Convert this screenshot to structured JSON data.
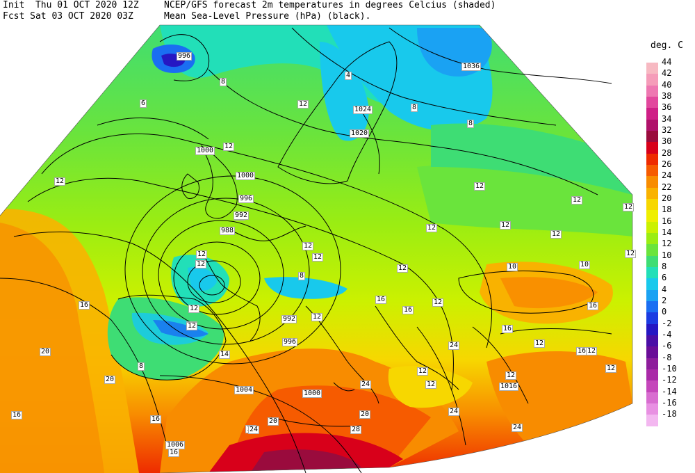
{
  "header": {
    "line1_left": "Init  Thu 01 OCT 2020 12Z",
    "line2_left": "Fcst Sat 03 OCT 2020 03Z",
    "line1_right": "NCEP/GFS forecast 2m temperatures in degrees Celcius (shaded)",
    "line2_right": "Mean Sea-Level Pressure (hPa) (black)."
  },
  "colorbar": {
    "unit": "deg. C",
    "entries": [
      {
        "label": "44",
        "color": "#f7b9c2"
      },
      {
        "label": "42",
        "color": "#f59cb9"
      },
      {
        "label": "40",
        "color": "#ee77b1"
      },
      {
        "label": "38",
        "color": "#e2479d"
      },
      {
        "label": "36",
        "color": "#cf1f86"
      },
      {
        "label": "34",
        "color": "#b0116a"
      },
      {
        "label": "32",
        "color": "#9a0b3d"
      },
      {
        "label": "30",
        "color": "#d8001a"
      },
      {
        "label": "28",
        "color": "#ee2b00"
      },
      {
        "label": "26",
        "color": "#f65b00"
      },
      {
        "label": "24",
        "color": "#f88c00"
      },
      {
        "label": "22",
        "color": "#f9b200"
      },
      {
        "label": "20",
        "color": "#f7d700"
      },
      {
        "label": "18",
        "color": "#efef00"
      },
      {
        "label": "16",
        "color": "#cbf100"
      },
      {
        "label": "14",
        "color": "#9bed12"
      },
      {
        "label": "12",
        "color": "#6ae43c"
      },
      {
        "label": "10",
        "color": "#3edd74"
      },
      {
        "label": "8",
        "color": "#22dfb8"
      },
      {
        "label": "6",
        "color": "#18c9ec"
      },
      {
        "label": "4",
        "color": "#1aa2f3"
      },
      {
        "label": "2",
        "color": "#1a6ef2"
      },
      {
        "label": "0",
        "color": "#1b3ce2"
      },
      {
        "label": "-2",
        "color": "#2517c3"
      },
      {
        "label": "-4",
        "color": "#4a0ea6"
      },
      {
        "label": "-6",
        "color": "#6a0d98"
      },
      {
        "label": "-8",
        "color": "#8e1d9c"
      },
      {
        "label": "-10",
        "color": "#aa2aa8"
      },
      {
        "label": "-12",
        "color": "#c546bb"
      },
      {
        "label": "-14",
        "color": "#d86dd0"
      },
      {
        "label": "-16",
        "color": "#e890e2"
      },
      {
        "label": "-18",
        "color": "#f3b7f0"
      }
    ]
  },
  "map": {
    "region": "Europe",
    "temperature_labels": [
      "8",
      "6",
      "12",
      "4",
      "12",
      "12",
      "8",
      "8",
      "12",
      "12",
      "12",
      "12",
      "12",
      "12",
      "12",
      "12",
      "12",
      "12",
      "10",
      "10",
      "16",
      "12",
      "8",
      "16",
      "12",
      "12",
      "12",
      "16",
      "12",
      "16",
      "20",
      "8",
      "16",
      "12",
      "16",
      "16",
      "20",
      "24",
      "20",
      "24",
      "24",
      "24",
      "28",
      "24",
      "12",
      "16",
      "12",
      "12",
      "12",
      "12",
      "16",
      "20",
      "16",
      "12",
      "12",
      "14",
      "12"
    ],
    "pressure_labels": [
      "996",
      "1036",
      "1024",
      "1020",
      "1000",
      "1000",
      "996",
      "992",
      "988",
      "992",
      "996",
      "1004",
      "1000",
      "1016",
      "1006"
    ]
  }
}
